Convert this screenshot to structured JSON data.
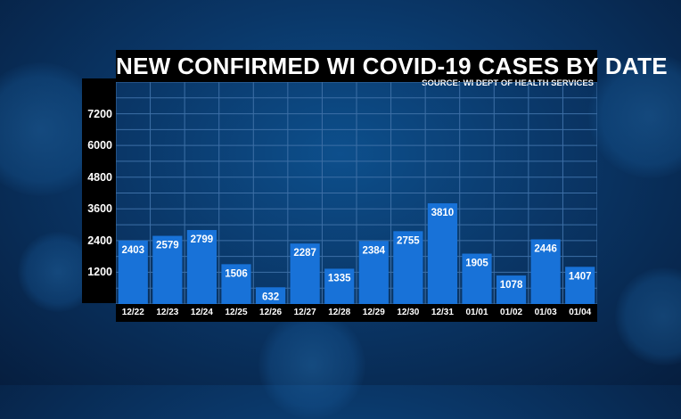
{
  "title": "NEW CONFIRMED WI COVID-19 CASES BY DATE",
  "source": "SOURCE: WI DEPT OF HEALTH SERVICES",
  "colors": {
    "bar": "#1872d8",
    "grid": "#3d6fa6",
    "axis_bg": "#000000",
    "label": "#ffffff"
  },
  "chart_data": {
    "type": "bar",
    "title": "NEW CONFIRMED WI COVID-19 CASES BY DATE",
    "subtitle": "SOURCE: WI DEPT OF HEALTH SERVICES",
    "xlabel": "",
    "ylabel": "",
    "categories": [
      "12/22",
      "12/23",
      "12/24",
      "12/25",
      "12/26",
      "12/27",
      "12/28",
      "12/29",
      "12/30",
      "12/31",
      "01/01",
      "01/02",
      "01/03",
      "01/04"
    ],
    "values": [
      2403,
      2579,
      2799,
      1506,
      632,
      2287,
      1335,
      2384,
      2755,
      3810,
      1905,
      1078,
      2446,
      1407
    ],
    "ylim": [
      0,
      8400
    ],
    "yticks": [
      1200,
      2400,
      3600,
      4800,
      6000,
      7200
    ],
    "ytick_labels": [
      "1200",
      "2400",
      "3600",
      "4800",
      "6000",
      "7200"
    ],
    "grid": true,
    "data_labels": true
  }
}
